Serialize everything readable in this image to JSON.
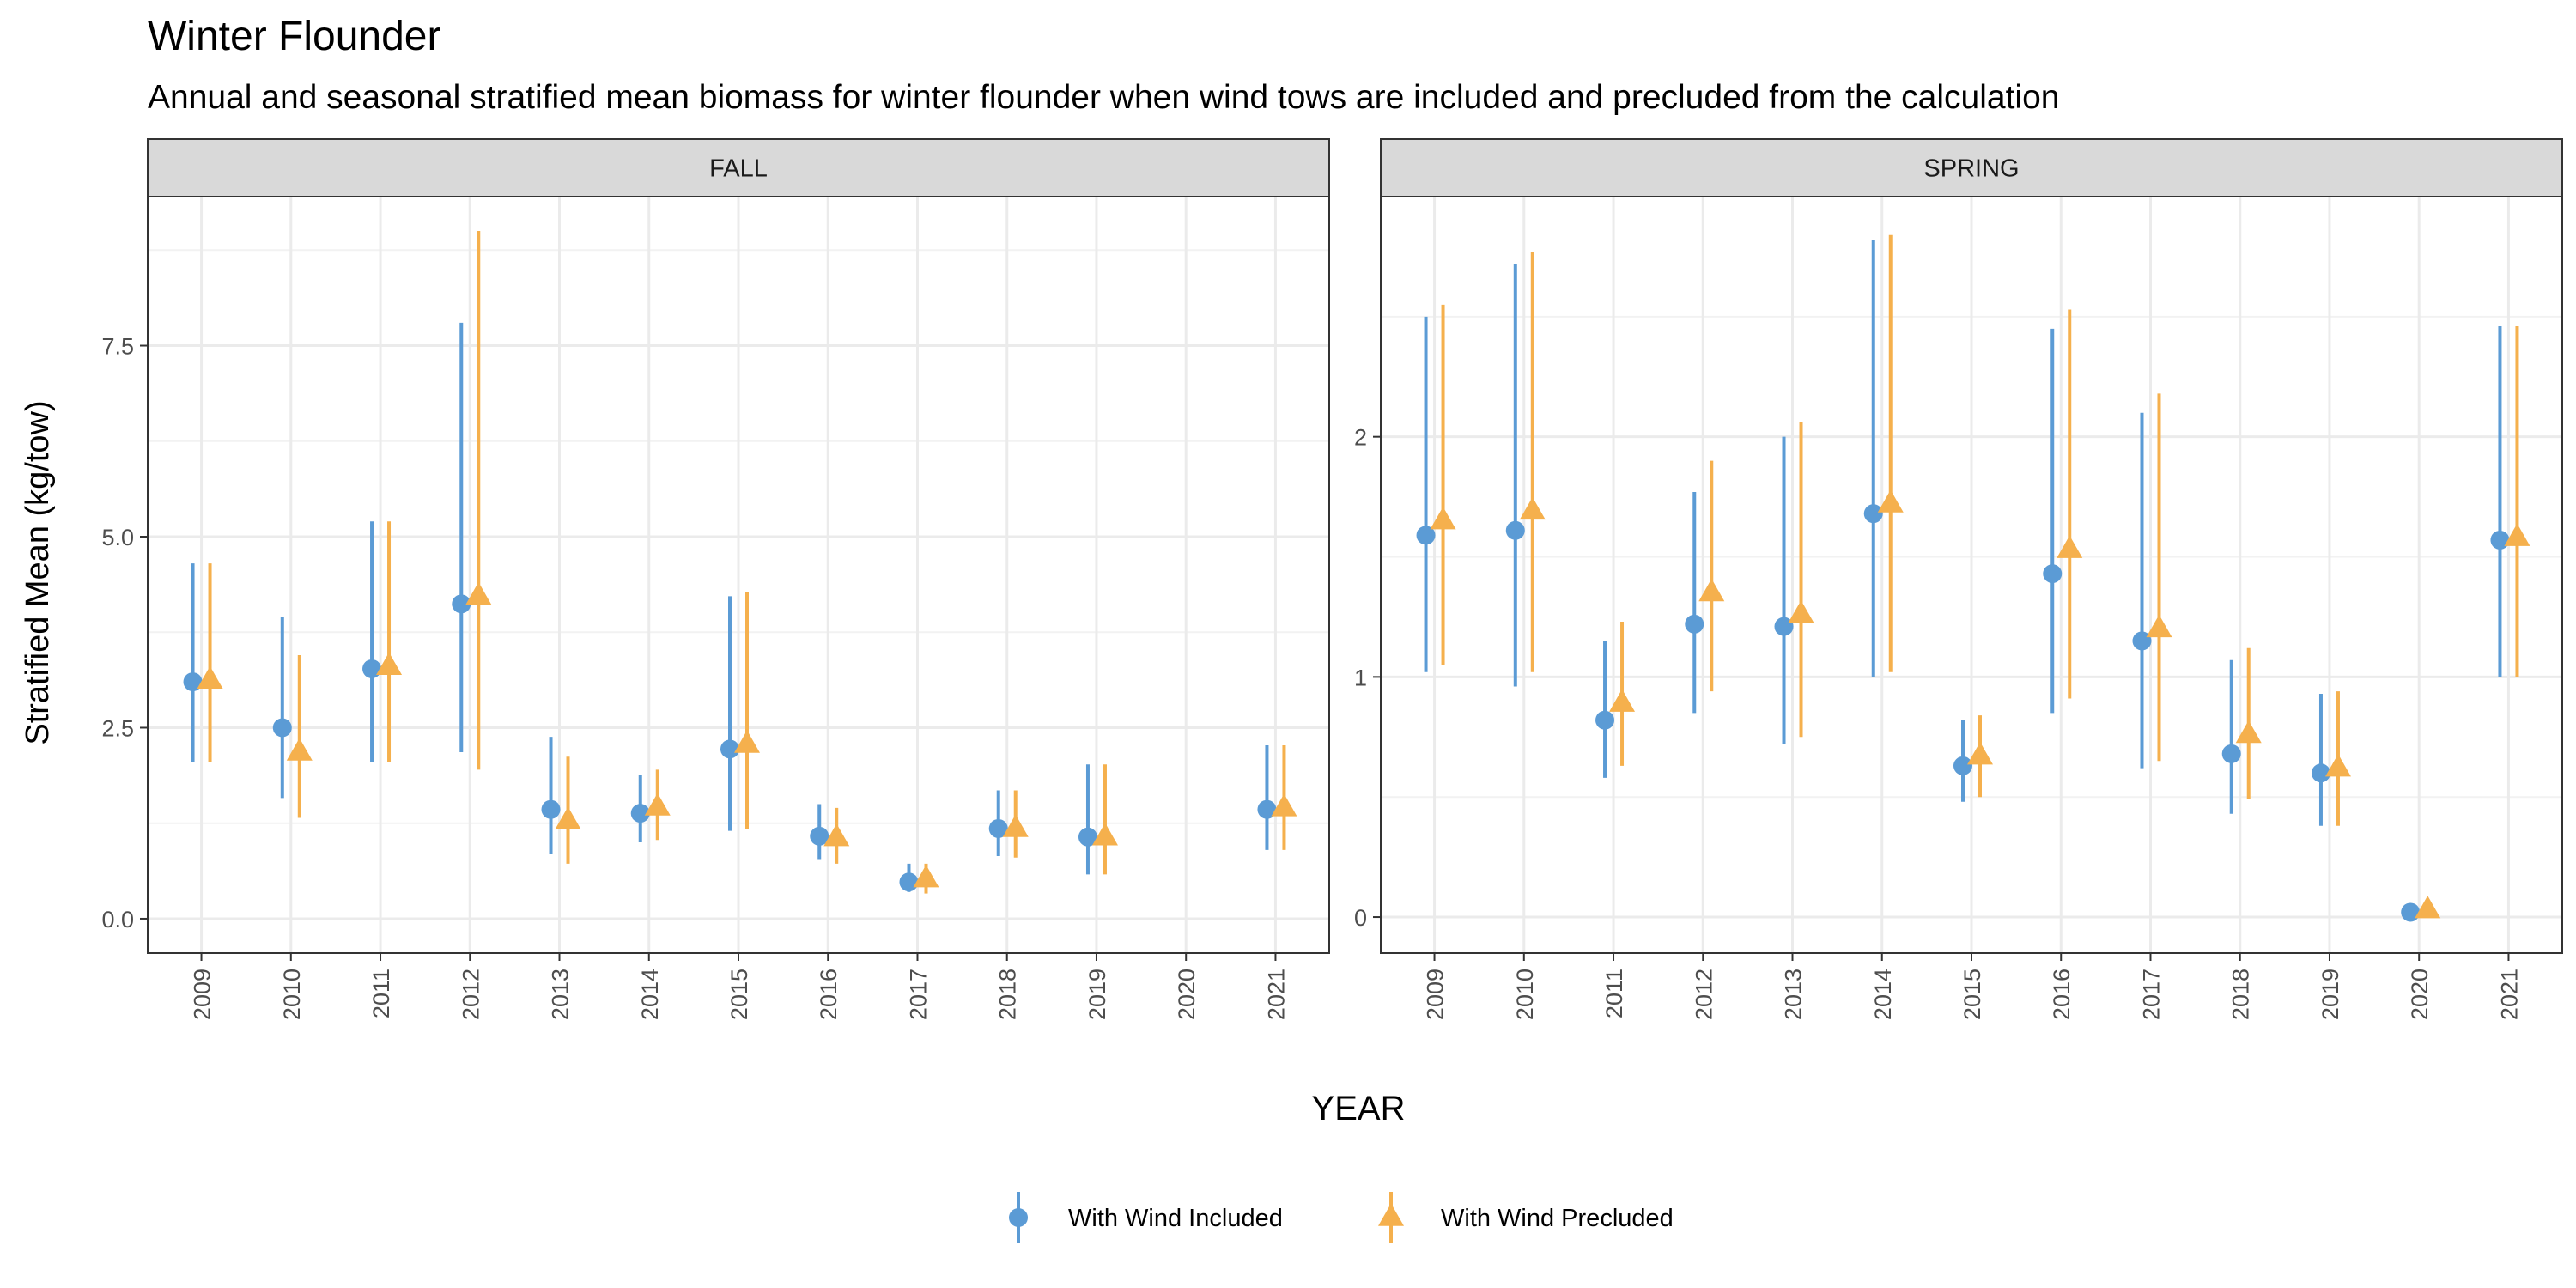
{
  "chart_data": {
    "type": "scatter",
    "title": "Winter Flounder",
    "subtitle": "Annual and seasonal stratified mean biomass for winter flounder when wind tows are included and precluded from the calculation",
    "xlabel": "YEAR",
    "ylabel": "Stratified Mean (kg/tow)",
    "grid": true,
    "legend_position": "bottom",
    "categories": [
      "2009",
      "2010",
      "2011",
      "2012",
      "2013",
      "2014",
      "2015",
      "2016",
      "2017",
      "2018",
      "2019",
      "2020",
      "2021"
    ],
    "legend": [
      {
        "name": "With Wind Included",
        "color": "#5b9bd5",
        "shape": "circle"
      },
      {
        "name": "With Wind Precluded",
        "color": "#f5b04d",
        "shape": "triangle"
      }
    ],
    "panels": [
      {
        "strip": "FALL",
        "ylim": [
          -0.45,
          9.45
        ],
        "yticks": [
          0,
          2.5,
          5,
          7.5
        ],
        "ytick_labels": [
          "0.0",
          "2.5",
          "5.0",
          "7.5"
        ],
        "series": [
          {
            "name": "With Wind Included",
            "mean": [
              3.1,
              2.5,
              3.27,
              4.12,
              1.43,
              1.38,
              2.22,
              1.08,
              0.48,
              1.18,
              1.07,
              null,
              1.43
            ],
            "lower": [
              2.05,
              1.58,
              2.05,
              2.18,
              0.85,
              1.0,
              1.15,
              0.78,
              0.35,
              0.82,
              0.58,
              null,
              0.9
            ],
            "upper": [
              4.65,
              3.95,
              5.2,
              7.8,
              2.38,
              1.88,
              4.22,
              1.5,
              0.72,
              1.68,
              2.02,
              null,
              2.27
            ]
          },
          {
            "name": "With Wind Precluded",
            "mean": [
              3.12,
              2.18,
              3.3,
              4.22,
              1.28,
              1.46,
              2.28,
              1.06,
              0.52,
              1.18,
              1.07,
              null,
              1.45
            ],
            "lower": [
              2.05,
              1.32,
              2.05,
              1.95,
              0.72,
              1.03,
              1.17,
              0.72,
              0.33,
              0.8,
              0.58,
              null,
              0.9
            ],
            "upper": [
              4.65,
              3.45,
              5.2,
              9.0,
              2.12,
              1.95,
              4.27,
              1.45,
              0.72,
              1.68,
              2.02,
              null,
              2.27
            ]
          }
        ]
      },
      {
        "strip": "SPRING",
        "ylim": [
          -0.15,
          3.0
        ],
        "yticks": [
          0,
          1,
          2
        ],
        "ytick_labels": [
          "0",
          "1",
          "2"
        ],
        "series": [
          {
            "name": "With Wind Included",
            "mean": [
              1.59,
              1.61,
              0.82,
              1.22,
              1.21,
              1.68,
              0.63,
              1.43,
              1.15,
              0.68,
              0.6,
              0.02,
              1.57
            ],
            "lower": [
              1.02,
              0.96,
              0.58,
              0.85,
              0.72,
              1.0,
              0.48,
              0.85,
              0.62,
              0.43,
              0.38,
              0.01,
              1.0
            ],
            "upper": [
              2.5,
              2.72,
              1.15,
              1.77,
              2.0,
              2.82,
              0.82,
              2.45,
              2.1,
              1.07,
              0.93,
              0.03,
              2.46
            ]
          },
          {
            "name": "With Wind Precluded",
            "mean": [
              1.65,
              1.69,
              0.89,
              1.35,
              1.26,
              1.72,
              0.67,
              1.53,
              1.2,
              0.76,
              0.62,
              0.03,
              1.58
            ],
            "lower": [
              1.05,
              1.02,
              0.63,
              0.94,
              0.75,
              1.02,
              0.5,
              0.91,
              0.65,
              0.49,
              0.38,
              0.01,
              1.0
            ],
            "upper": [
              2.55,
              2.77,
              1.23,
              1.9,
              2.06,
              2.84,
              0.84,
              2.53,
              2.18,
              1.12,
              0.94,
              0.03,
              2.46
            ]
          }
        ]
      }
    ]
  }
}
